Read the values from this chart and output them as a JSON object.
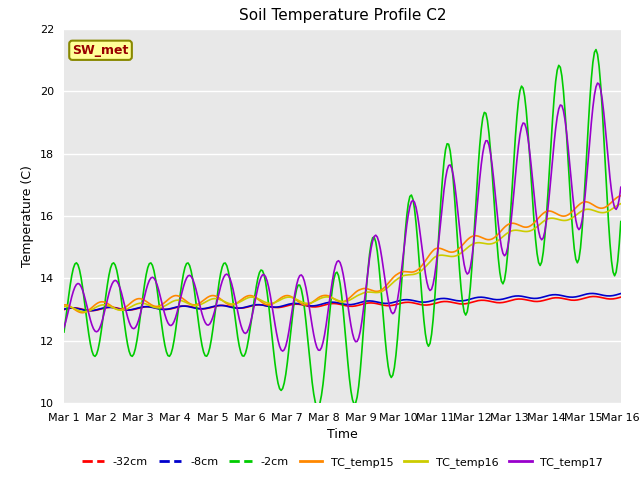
{
  "title": "Soil Temperature Profile C2",
  "xlabel": "Time",
  "ylabel": "Temperature (C)",
  "ylim": [
    10,
    22
  ],
  "xlim": [
    0,
    15
  ],
  "xtick_labels": [
    "Mar 1",
    "Mar 2",
    "Mar 3",
    "Mar 4",
    "Mar 5",
    "Mar 6",
    "Mar 7",
    "Mar 8",
    "Mar 9",
    "Mar 10",
    "Mar 11",
    "Mar 12",
    "Mar 13",
    "Mar 14",
    "Mar 15",
    "Mar 16"
  ],
  "xtick_positions": [
    0,
    1,
    2,
    3,
    4,
    5,
    6,
    7,
    8,
    9,
    10,
    11,
    12,
    13,
    14,
    15
  ],
  "ytick_labels": [
    "10",
    "12",
    "14",
    "16",
    "18",
    "20",
    "22"
  ],
  "ytick_positions": [
    10,
    12,
    14,
    16,
    18,
    20,
    22
  ],
  "plot_bg_color": "#e8e8e8",
  "fig_bg_color": "#ffffff",
  "sw_met_label": "SW_met",
  "sw_met_bg": "#ffff99",
  "sw_met_fg": "#990000",
  "sw_met_border": "#888800",
  "legend_entries": [
    "-32cm",
    "-8cm",
    "-2cm",
    "TC_temp15",
    "TC_temp16",
    "TC_temp17"
  ],
  "line_colors": [
    "#ff0000",
    "#0000cc",
    "#00cc00",
    "#ff8800",
    "#cccc00",
    "#9900cc"
  ],
  "grid_color": "#ffffff",
  "title_fontsize": 11,
  "axis_fontsize": 9,
  "tick_fontsize": 8
}
